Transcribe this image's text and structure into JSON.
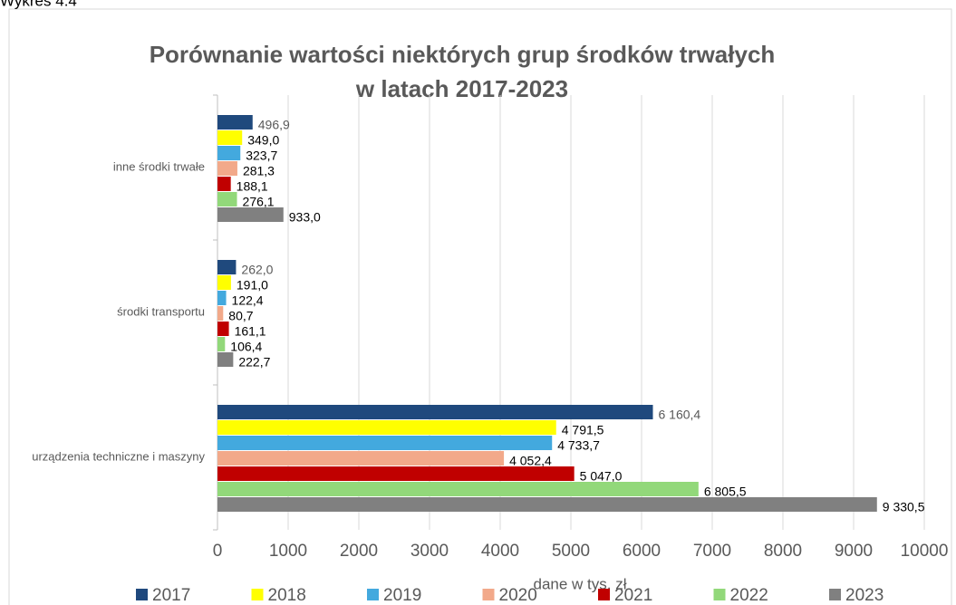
{
  "chart_data": {
    "type": "hbar",
    "caption": "Wykres 4.4",
    "title": [
      "Porównanie wartości niektórych grup środków trwałych",
      "w latach 2017-2023"
    ],
    "x_label": "dane w tys. zł",
    "categories": [
      "inne środki trwałe",
      "środki transportu",
      "urządzenia techniczne i maszyny"
    ],
    "series": [
      {
        "name": "2017",
        "color": "#1f497d",
        "values": [
          496.9,
          262.0,
          6160.4
        ],
        "value_labels": [
          "496,9",
          "262,0",
          "6 160,4"
        ]
      },
      {
        "name": "2018",
        "color": "#ffff00",
        "values": [
          349.0,
          191.0,
          4791.5
        ],
        "value_labels": [
          "349,0",
          "191,0",
          "4 791,5"
        ]
      },
      {
        "name": "2019",
        "color": "#43a9de",
        "values": [
          323.7,
          122.4,
          4733.7
        ],
        "value_labels": [
          "323,7",
          "122,4",
          "4 733,7"
        ]
      },
      {
        "name": "2020",
        "color": "#f2a98a",
        "values": [
          281.3,
          80.7,
          4052.4
        ],
        "value_labels": [
          "281,3",
          "80,7",
          "4 052,4"
        ]
      },
      {
        "name": "2021",
        "color": "#c00000",
        "values": [
          188.1,
          161.1,
          5047.0
        ],
        "value_labels": [
          "188,1",
          "161,1",
          "5 047,0"
        ]
      },
      {
        "name": "2022",
        "color": "#92d87a",
        "values": [
          276.1,
          106.4,
          6805.5
        ],
        "value_labels": [
          "276,1",
          "106,4",
          "6 805,5"
        ]
      },
      {
        "name": "2023",
        "color": "#808080",
        "values": [
          933.0,
          222.7,
          9330.5
        ],
        "value_labels": [
          "933,0",
          "222,7",
          "9 330,5"
        ]
      }
    ],
    "xlim": [
      0,
      10000
    ],
    "xticks": [
      0,
      1000,
      2000,
      3000,
      4000,
      5000,
      6000,
      7000,
      8000,
      9000,
      10000
    ],
    "grid": true,
    "legend": "bottom"
  }
}
